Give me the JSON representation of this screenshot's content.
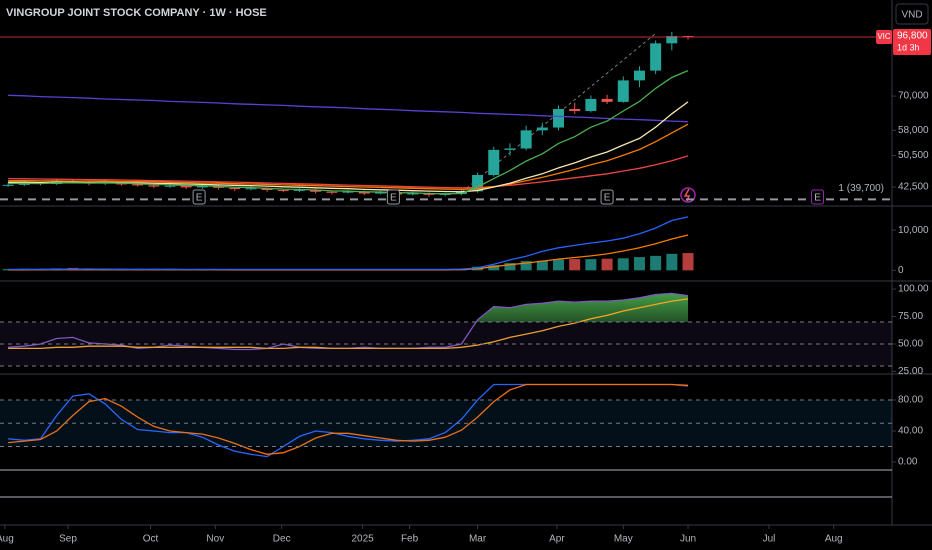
{
  "chart_data": [
    {
      "type": "candlestick",
      "title": "VINGROUP JOINT STOCK COMPANY · 1W · HOSE",
      "currency": "VND",
      "log_scale": true,
      "x": [
        0,
        1,
        2,
        3,
        4,
        5,
        6,
        7,
        8,
        9,
        10,
        11,
        12,
        13,
        14,
        15,
        16,
        17,
        18,
        19,
        20,
        21,
        22,
        23,
        24,
        25,
        26,
        27,
        28,
        29,
        30,
        31,
        32,
        33,
        34,
        35,
        36,
        37,
        38,
        39,
        40,
        41,
        42
      ],
      "open": [
        42800,
        43000,
        43500,
        43200,
        44000,
        43600,
        43300,
        43800,
        43100,
        42900,
        42600,
        42800,
        42400,
        42700,
        42300,
        42000,
        42200,
        41800,
        41600,
        41900,
        41400,
        41200,
        41500,
        41000,
        41300,
        40800,
        41100,
        40700,
        40900,
        41500,
        45400,
        52100,
        52500,
        58000,
        58900,
        65200,
        64500,
        68900,
        67800,
        76300,
        80500,
        93500,
        97300
      ],
      "high": [
        43400,
        43900,
        43700,
        44500,
        44200,
        43800,
        44200,
        43900,
        43300,
        43100,
        43200,
        43000,
        43100,
        42900,
        42500,
        42600,
        42400,
        42000,
        42200,
        42100,
        41700,
        41800,
        41700,
        41600,
        41500,
        41400,
        41300,
        41200,
        41800,
        46000,
        53000,
        54000,
        59500,
        60500,
        66500,
        67500,
        70200,
        70500,
        78000,
        82500,
        95000,
        99500,
        97500
      ],
      "low": [
        42500,
        42700,
        42900,
        43000,
        43300,
        42900,
        43000,
        42800,
        42600,
        42200,
        42300,
        42000,
        42100,
        41900,
        41600,
        41700,
        41400,
        41300,
        41300,
        41000,
        40800,
        41000,
        40700,
        40800,
        40400,
        40600,
        40300,
        40400,
        40600,
        41200,
        45000,
        50500,
        52000,
        56500,
        58000,
        63500,
        64000,
        67000,
        67500,
        73500,
        79000,
        90000,
        95500
      ],
      "close": [
        43000,
        43500,
        43200,
        44000,
        43600,
        43300,
        43800,
        43100,
        42900,
        42600,
        42800,
        42400,
        42700,
        42300,
        42000,
        42200,
        41800,
        41600,
        41900,
        41400,
        41200,
        41500,
        41000,
        41300,
        40800,
        41100,
        40700,
        40900,
        41500,
        45400,
        52100,
        52500,
        58000,
        58900,
        65200,
        64500,
        68900,
        67800,
        76300,
        80500,
        93500,
        97300,
        96800
      ],
      "up_color": "#26a69a",
      "down_color": "#ef5350",
      "series": [
        {
          "color": "#5b3fd4",
          "values": [
            70300,
            70100,
            69800,
            69600,
            69400,
            69200,
            68900,
            68700,
            68500,
            68300,
            68000,
            67800,
            67600,
            67400,
            67100,
            66900,
            66700,
            66500,
            66200,
            66000,
            65800,
            65600,
            65300,
            65100,
            64900,
            64600,
            64400,
            64200,
            64000,
            63700,
            63500,
            63300,
            63100,
            62800,
            62600,
            62400,
            62200,
            61900,
            61700,
            61500,
            61300,
            61000,
            60800
          ]
        },
        {
          "color": "#ef4444",
          "values": [
            44500,
            44450,
            44400,
            44350,
            44300,
            44250,
            44200,
            44150,
            44100,
            44000,
            43950,
            43900,
            43800,
            43700,
            43650,
            43550,
            43450,
            43350,
            43250,
            43150,
            43050,
            42950,
            42850,
            42750,
            42650,
            42550,
            42450,
            42350,
            42300,
            42350,
            42600,
            42900,
            43300,
            43700,
            44200,
            44700,
            45200,
            45700,
            46400,
            47100,
            48000,
            49100,
            50400
          ]
        },
        {
          "color": "#f57c00",
          "values": [
            44000,
            44000,
            43950,
            43950,
            43900,
            43900,
            43850,
            43800,
            43750,
            43700,
            43600,
            43550,
            43450,
            43400,
            43300,
            43200,
            43100,
            43000,
            42900,
            42800,
            42700,
            42600,
            42500,
            42400,
            42300,
            42200,
            42100,
            42000,
            41950,
            42100,
            42600,
            43200,
            44000,
            44800,
            45800,
            46800,
            48000,
            49100,
            50600,
            52200,
            54500,
            57200,
            60000
          ]
        },
        {
          "color": "#f5e6b3",
          "values": [
            43600,
            43600,
            43550,
            43600,
            43600,
            43550,
            43550,
            43500,
            43450,
            43350,
            43300,
            43200,
            43100,
            43000,
            42900,
            42800,
            42700,
            42550,
            42450,
            42300,
            42200,
            42100,
            41950,
            41850,
            41750,
            41650,
            41550,
            41450,
            41400,
            41700,
            42500,
            43400,
            44600,
            45700,
            47200,
            48500,
            50100,
            51500,
            53500,
            55500,
            59000,
            63500,
            67800
          ]
        },
        {
          "color": "#4caf50",
          "values": [
            43300,
            43350,
            43300,
            43500,
            43500,
            43450,
            43500,
            43400,
            43250,
            43100,
            43000,
            42850,
            42800,
            42650,
            42450,
            42350,
            42200,
            42000,
            41950,
            41800,
            41600,
            41550,
            41400,
            41350,
            41200,
            41150,
            41000,
            40950,
            41000,
            42500,
            44500,
            46500,
            49000,
            51000,
            54000,
            56000,
            59000,
            61000,
            64500,
            68000,
            73000,
            77500,
            80500
          ]
        }
      ],
      "ylim": [
        38500,
        118600
      ],
      "yticks": [
        {
          "value": 70000,
          "label": "70,000"
        },
        {
          "value": 58000,
          "label": "58,000"
        },
        {
          "value": 50500,
          "label": "50,500"
        },
        {
          "value": 42500,
          "label": "42,500"
        }
      ],
      "last_price": {
        "value": 96800,
        "label": "96,800",
        "symbol": "VIC",
        "countdown": "1d 3h",
        "color": "#f23645"
      },
      "alert_line": {
        "value": 39700,
        "label": "1 (39,700)"
      },
      "events": [
        {
          "x": 11.8,
          "label": "E",
          "color": "#9598a1"
        },
        {
          "x": 23.8,
          "label": "E",
          "color": "#9598a1"
        },
        {
          "x": 37.0,
          "label": "E",
          "color": "#9598a1"
        },
        {
          "x": 50.0,
          "label": "E",
          "color": "#9c27b0"
        }
      ],
      "xlim": [
        -0.5,
        54.6
      ],
      "xticks": [
        {
          "value": -0.2,
          "label": "Aug"
        },
        {
          "value": 3.7,
          "label": "Sep"
        },
        {
          "value": 8.8,
          "label": "Oct"
        },
        {
          "value": 12.8,
          "label": "Nov"
        },
        {
          "value": 16.9,
          "label": "Dec"
        },
        {
          "value": 21.9,
          "label": "2025"
        },
        {
          "value": 24.8,
          "label": "Feb"
        },
        {
          "value": 29.0,
          "label": "Mar"
        },
        {
          "value": 33.9,
          "label": "Apr"
        },
        {
          "value": 38.0,
          "label": "May"
        },
        {
          "value": 42.0,
          "label": "Jun"
        },
        {
          "value": 47.0,
          "label": "Jul"
        },
        {
          "value": 51.0,
          "label": "Aug"
        }
      ]
    },
    {
      "type": "bar",
      "values": [
        300,
        400,
        350,
        500,
        600,
        500,
        450,
        400,
        350,
        300,
        350,
        300,
        250,
        300,
        250,
        200,
        250,
        300,
        250,
        200,
        250,
        200,
        300,
        250,
        200,
        250,
        300,
        200,
        400,
        900,
        1300,
        1800,
        2300,
        2400,
        2700,
        2800,
        2800,
        2900,
        3000,
        3300,
        3600,
        4100,
        4300
      ],
      "series": [
        {
          "color": "#f57c00",
          "values": [
            150,
            150,
            160,
            160,
            170,
            170,
            170,
            170,
            170,
            160,
            160,
            160,
            160,
            160,
            150,
            150,
            150,
            150,
            150,
            150,
            150,
            150,
            150,
            150,
            150,
            150,
            150,
            150,
            200,
            400,
            900,
            1400,
            1800,
            2300,
            2800,
            3200,
            3600,
            4100,
            4800,
            5600,
            6600,
            7800,
            8800
          ]
        },
        {
          "color": "#2962ff",
          "values": [
            250,
            250,
            260,
            270,
            280,
            280,
            280,
            270,
            260,
            260,
            260,
            250,
            250,
            250,
            240,
            240,
            240,
            240,
            240,
            230,
            230,
            230,
            230,
            230,
            230,
            230,
            230,
            230,
            300,
            600,
            1500,
            2600,
            3500,
            4700,
            5600,
            6200,
            6800,
            7300,
            8000,
            9100,
            10500,
            12400,
            13300
          ]
        }
      ],
      "ylim": [
        -1900,
        15500
      ],
      "yticks": [
        {
          "value": 10000,
          "label": "10,000"
        },
        0
      ]
    },
    {
      "type": "line",
      "series": [
        {
          "color": "#7e57c2",
          "values": [
            47,
            48,
            50,
            55,
            56,
            51,
            50,
            49,
            46,
            47,
            49,
            48,
            47,
            46,
            45,
            45,
            46,
            50,
            47,
            46,
            46,
            46,
            47,
            46,
            46,
            46,
            47,
            47,
            50,
            72,
            84,
            83,
            86,
            87,
            89,
            88,
            89,
            89,
            90,
            92,
            95,
            96,
            94
          ]
        },
        {
          "color": "#f5a623",
          "values": [
            46,
            46,
            46,
            47,
            47,
            48,
            48,
            48,
            47,
            47,
            47,
            47,
            47,
            47,
            47,
            47,
            46,
            46,
            47,
            47,
            46,
            46,
            46,
            46,
            46,
            46,
            46,
            46,
            47,
            49,
            52,
            56,
            59,
            62,
            66,
            69,
            73,
            76,
            80,
            83,
            86,
            89,
            91
          ]
        }
      ],
      "bands": {
        "lower": 30,
        "middle": 50,
        "upper": 70,
        "color": "#7e57c2"
      },
      "overbought_fill": "#4caf50",
      "ylim": [
        24.5,
        105.5
      ],
      "yticks": [
        {
          "value": 100,
          "label": "100.00"
        },
        {
          "value": 75,
          "label": "75.00"
        },
        {
          "value": 50,
          "label": "50.00"
        },
        {
          "value": 25,
          "label": "25.00"
        }
      ]
    },
    {
      "type": "line",
      "series": [
        {
          "color": "#2962ff",
          "values": [
            30,
            28,
            30,
            60,
            85,
            88,
            75,
            55,
            42,
            40,
            38,
            38,
            32,
            22,
            14,
            10,
            7,
            20,
            33,
            40,
            38,
            33,
            30,
            28,
            27,
            28,
            30,
            38,
            55,
            80,
            100,
            100,
            100,
            100,
            100,
            100,
            100,
            100,
            100,
            100,
            100,
            100,
            98
          ]
        },
        {
          "color": "#ff6d00",
          "values": [
            25,
            27,
            29,
            40,
            60,
            78,
            82,
            72,
            58,
            46,
            40,
            38,
            36,
            31,
            24,
            16,
            10,
            12,
            20,
            31,
            37,
            37,
            34,
            31,
            28,
            27,
            28,
            32,
            41,
            58,
            78,
            93,
            100,
            100,
            100,
            100,
            100,
            100,
            100,
            100,
            100,
            100,
            99
          ]
        }
      ],
      "bands": {
        "lower": 20,
        "middle": 50,
        "upper": 80,
        "color": "#2196f3"
      },
      "ylim": [
        -10.3,
        111
      ],
      "yticks": [
        {
          "value": 80,
          "label": "80.00"
        },
        {
          "value": 40,
          "label": "40.00"
        },
        {
          "value": 0,
          "label": "0.00"
        }
      ]
    }
  ]
}
